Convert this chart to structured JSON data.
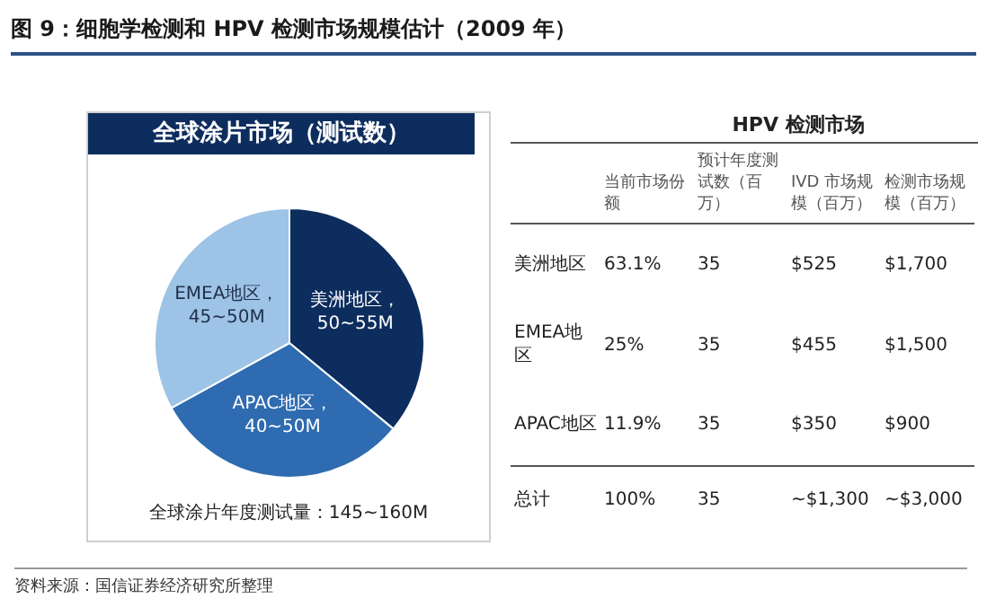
{
  "chart_data": [
    {
      "type": "pie",
      "title": "图 9：细胞学检测和 HPV 检测市场规模估计（2009 年）",
      "subtitle": "全球涂片市场（测试数）",
      "categories": [
        "美洲地区，\n50~55M",
        "APAC地区，\n40~50M",
        "EMEA地区，\n45~50M"
      ],
      "values": [
        36,
        31,
        33
      ],
      "colors": [
        "#0d2d5e",
        "#2e6bb0",
        "#9dc3e6"
      ],
      "annotations": [
        "全球涂片年度测试量：145~160M",
        "资料来源：国信证券经济研究所整理"
      ]
    },
    {
      "type": "other",
      "title": "HPV 检测市场",
      "categories": [
        "当前市场份额",
        "预计年度测试数（百万）",
        "IVD 市场规模（百万）",
        "检测市场规模（百万）"
      ],
      "y_categories": [
        "美洲地区",
        "EMEA地区",
        "APAC地区",
        "总计"
      ],
      "cell_labels": [
        [
          "63.1%",
          "35",
          "$525",
          "$1,700"
        ],
        [
          "25%",
          "35",
          "$455",
          "$1,500"
        ],
        [
          "11.9%",
          "35",
          "$350",
          "$900"
        ],
        [
          "100%",
          "35",
          "~$1,300",
          "~$3,000"
        ]
      ]
    }
  ]
}
